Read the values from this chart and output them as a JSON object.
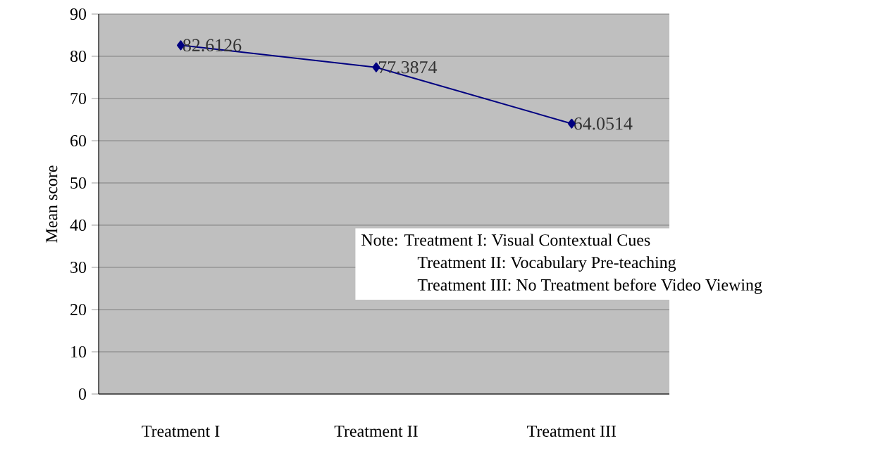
{
  "chart_data": {
    "type": "line",
    "ylabel": "Mean score",
    "categories": [
      "Treatment I",
      "Treatment II",
      "Treatment III"
    ],
    "values": [
      82.6126,
      77.3874,
      64.0514
    ],
    "color": "#000080",
    "marker": "diamond",
    "line_style": "solid",
    "data_labels": true,
    "grid": "y",
    "ylim": [
      0,
      90
    ],
    "yticks": [
      0,
      10,
      20,
      30,
      40,
      50,
      60,
      70,
      80,
      90
    ],
    "annotations": [
      "Note: Treatment I: Visual Contextual Cues",
      "Treatment II: Vocabulary Pre-teaching",
      "Treatment III: No Treatment before Video Viewing"
    ]
  }
}
